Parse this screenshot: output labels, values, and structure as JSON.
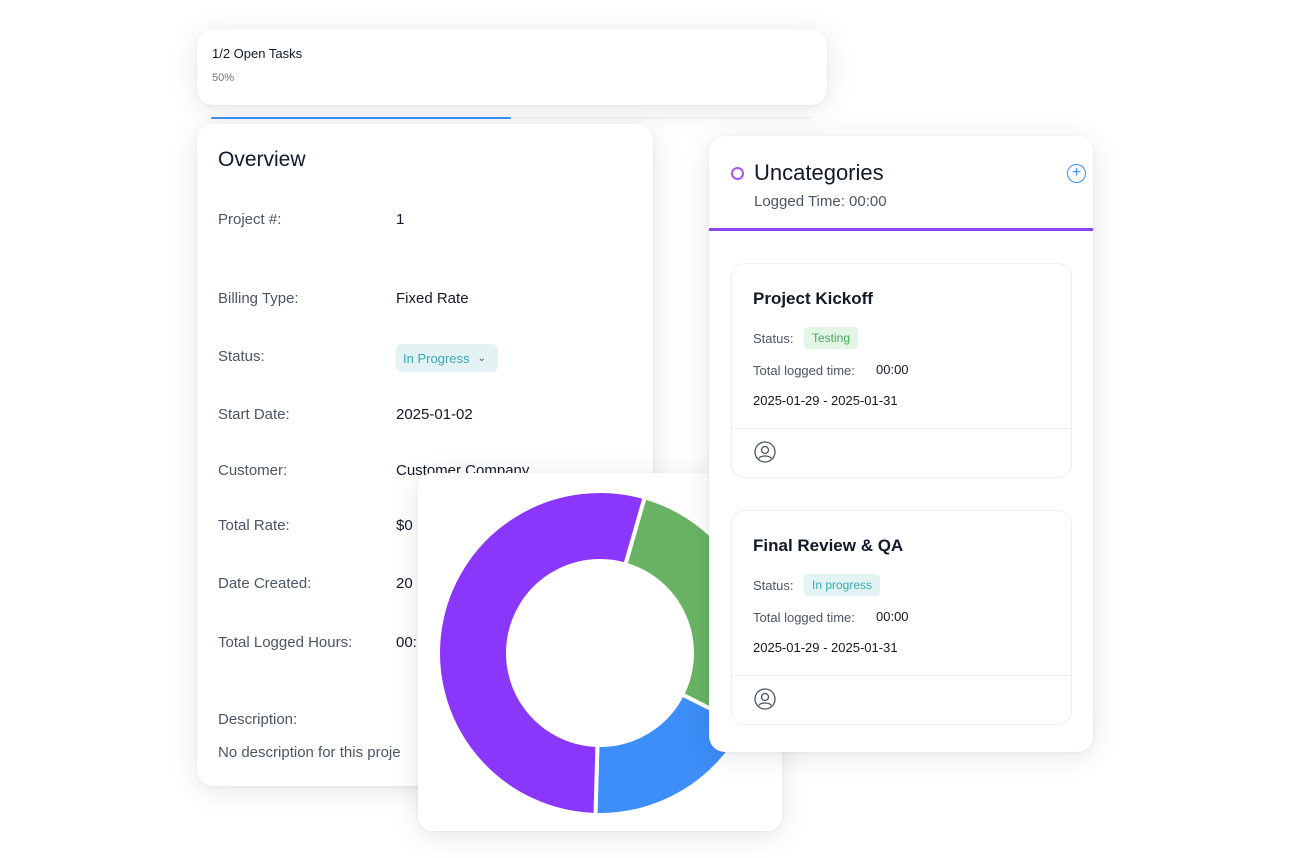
{
  "progress": {
    "title": "1/2 Open Tasks",
    "percent_label": "50%",
    "fraction": 0.5,
    "color": "#3b8ff6"
  },
  "overview": {
    "heading": "Overview",
    "rows": [
      {
        "label": "Project #:",
        "value": "1"
      },
      {
        "label": "Billing Type:",
        "value": "Fixed Rate"
      },
      {
        "label": "Status:",
        "value": "In Progress"
      },
      {
        "label": "Start Date:",
        "value": "2025-01-02"
      },
      {
        "label": "Customer:",
        "value": "Customer Company"
      },
      {
        "label": "Total Rate:",
        "value": "$0"
      },
      {
        "label": "Date Created:",
        "value": "20"
      },
      {
        "label": "Total Logged Hours:",
        "value": "00:"
      }
    ],
    "description_label": "Description:",
    "description_text": "No description for this proje"
  },
  "chart_data": {
    "type": "pie",
    "donut": true,
    "slices": [
      {
        "value": 0.28,
        "color": "#68b464"
      },
      {
        "value": 0.18,
        "color": "#3d8ef8"
      },
      {
        "value": 0.54,
        "color": "#8b37fb"
      }
    ]
  },
  "uncategories": {
    "title": "Uncategories",
    "logged_time": "Logged Time: 00:00",
    "add_icon": "plus-circle-icon",
    "accent_color": "#8b45f6",
    "tasks": [
      {
        "title": "Project Kickoff",
        "status_label": "Status:",
        "status": "Testing",
        "time_label": "Total logged time:",
        "time_value": "00:00",
        "dates": "2025-01-29 - 2025-01-31"
      },
      {
        "title": "Final Review & QA",
        "status_label": "Status:",
        "status": "In progress",
        "time_label": "Total logged time:",
        "time_value": "00:00",
        "dates": "2025-01-29 - 2025-01-31"
      }
    ]
  }
}
